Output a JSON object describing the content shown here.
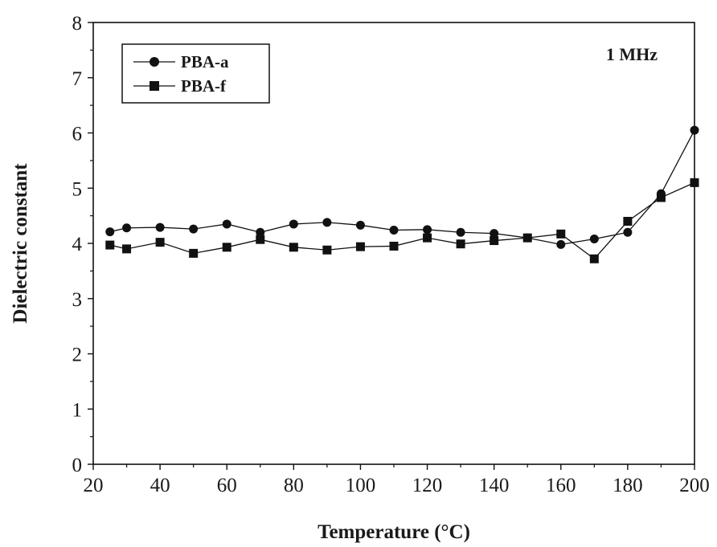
{
  "chart_data": {
    "type": "line",
    "xlabel": "Temperature (°C)",
    "ylabel": "Dielectric constant",
    "xlim": [
      20,
      200
    ],
    "ylim": [
      0,
      8
    ],
    "xticks": [
      20,
      40,
      60,
      80,
      100,
      120,
      140,
      160,
      180,
      200
    ],
    "yticks": [
      0,
      1,
      2,
      3,
      4,
      5,
      6,
      7,
      8
    ],
    "grid": false,
    "legend_position": "top-left",
    "annotation": "1 MHz",
    "series": [
      {
        "name": "PBA-a",
        "marker": "circle",
        "color": "#111111",
        "x": [
          25,
          30,
          40,
          50,
          60,
          70,
          80,
          90,
          100,
          110,
          120,
          130,
          140,
          150,
          160,
          170,
          180,
          190,
          200
        ],
        "y": [
          4.21,
          4.28,
          4.29,
          4.26,
          4.35,
          4.2,
          4.35,
          4.38,
          4.33,
          4.24,
          4.25,
          4.2,
          4.18,
          4.1,
          3.98,
          4.08,
          4.2,
          4.9,
          6.05
        ]
      },
      {
        "name": "PBA-f",
        "marker": "square",
        "color": "#111111",
        "x": [
          25,
          30,
          40,
          50,
          60,
          70,
          80,
          90,
          100,
          110,
          120,
          130,
          140,
          150,
          160,
          170,
          180,
          190,
          200
        ],
        "y": [
          3.97,
          3.9,
          4.02,
          3.82,
          3.93,
          4.07,
          3.93,
          3.88,
          3.94,
          3.95,
          4.1,
          3.99,
          4.05,
          4.1,
          4.17,
          3.72,
          4.4,
          4.83,
          5.1
        ]
      }
    ]
  }
}
